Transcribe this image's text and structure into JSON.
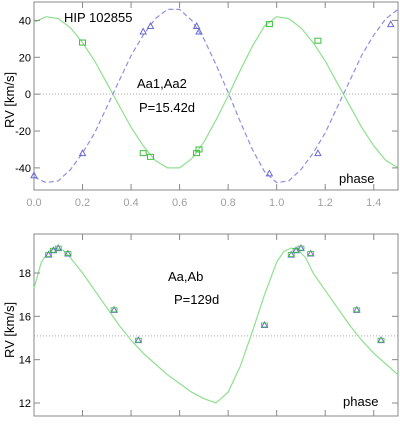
{
  "chart_data": [
    {
      "type": "line",
      "title": "HIP 102855",
      "ylabel": "RV [km/s]",
      "xlabel": "phase",
      "xlim": [
        0.0,
        1.5
      ],
      "ylim": [
        -52,
        50
      ],
      "xticks": [
        "0.0",
        "0.2",
        "0.4",
        "0.6",
        "0.8",
        "1.0",
        "1.2",
        "1.4"
      ],
      "yticks": [
        "40",
        "20",
        "0",
        "-20",
        "-40"
      ],
      "annotations": [
        "Aa1,Aa2",
        "P=15.42d"
      ],
      "gamma": 0,
      "colors": {
        "curve_a": "#8fe08f",
        "curve_b": "#8f8fe0",
        "points_a": "#3bbf3b",
        "points_b": "#6a6ad6"
      },
      "series": [
        {
          "curve_x": [
            0.0,
            0.05,
            0.1,
            0.15,
            0.2,
            0.25,
            0.3,
            0.35,
            0.4,
            0.45,
            0.5,
            0.55,
            0.6,
            0.65,
            0.7,
            0.75,
            0.8,
            0.85,
            0.9,
            0.95,
            1.0,
            1.05,
            1.1,
            1.15,
            1.2,
            1.25,
            1.3,
            1.35,
            1.4,
            1.45,
            1.5
          ],
          "curve_y": [
            39,
            42,
            41,
            36,
            28,
            18,
            6,
            -6,
            -18,
            -28,
            -36,
            -40,
            -40,
            -35,
            -26,
            -14,
            -1,
            13,
            26,
            37,
            42,
            41,
            36,
            28,
            18,
            6,
            -6,
            -18,
            -28,
            -36,
            -40
          ],
          "points": {
            "x": [
              0.2,
              0.45,
              0.48,
              0.67,
              0.68,
              0.97,
              1.17
            ],
            "y": [
              28,
              -32,
              -34,
              -32,
              -30,
              38,
              29
            ]
          }
        },
        {
          "curve_x": [
            0.0,
            0.05,
            0.1,
            0.15,
            0.2,
            0.25,
            0.3,
            0.35,
            0.4,
            0.45,
            0.5,
            0.55,
            0.6,
            0.65,
            0.7,
            0.75,
            0.8,
            0.85,
            0.9,
            0.95,
            1.0,
            1.05,
            1.1,
            1.15,
            1.2,
            1.25,
            1.3,
            1.35,
            1.4,
            1.45,
            1.5
          ],
          "curve_y": [
            -45,
            -48,
            -47,
            -41,
            -32,
            -21,
            -7,
            7,
            21,
            32,
            41,
            46,
            46,
            40,
            30,
            16,
            1,
            -15,
            -30,
            -42,
            -48,
            -47,
            -41,
            -32,
            -21,
            -7,
            7,
            21,
            32,
            41,
            46
          ],
          "points": {
            "x": [
              0.0,
              0.2,
              0.45,
              0.48,
              0.67,
              0.68,
              0.97,
              1.17,
              1.47
            ],
            "y": [
              -44,
              -32,
              34,
              37,
              37,
              34,
              -43,
              -32,
              38
            ]
          }
        }
      ]
    },
    {
      "type": "line",
      "title": "",
      "ylabel": "RV [km/s]",
      "xlabel": "phase",
      "xlim": [
        0.0,
        1.5
      ],
      "ylim": [
        11.4,
        19.8
      ],
      "yticks": [
        "18",
        "16",
        "14",
        "12"
      ],
      "annotations": [
        "Aa,Ab",
        "P=129d"
      ],
      "gamma": 15.1,
      "colors": {
        "curve": "#8fe08f",
        "points_a": "#3bbf3b",
        "points_b": "#6a6ad6"
      },
      "series": [
        {
          "curve_x": [
            0.0,
            0.03,
            0.06,
            0.09,
            0.12,
            0.15,
            0.2,
            0.25,
            0.3,
            0.35,
            0.4,
            0.45,
            0.5,
            0.55,
            0.6,
            0.65,
            0.7,
            0.75,
            0.8,
            0.85,
            0.9,
            0.95,
            1.0,
            1.03,
            1.06,
            1.09,
            1.12,
            1.15,
            1.2,
            1.25,
            1.3,
            1.35,
            1.4,
            1.45,
            1.5
          ],
          "curve_y": [
            17.3,
            18.5,
            19.0,
            19.15,
            19.05,
            18.7,
            18.0,
            17.2,
            16.4,
            15.6,
            14.9,
            14.3,
            13.8,
            13.3,
            12.9,
            12.5,
            12.2,
            12.0,
            12.5,
            13.7,
            15.3,
            17.0,
            18.5,
            19.0,
            19.15,
            19.05,
            18.7,
            18.0,
            17.2,
            16.4,
            15.6,
            14.9,
            14.3,
            13.8,
            13.3
          ],
          "points": {
            "x": [
              0.06,
              0.08,
              0.1,
              0.14,
              0.33,
              0.43,
              0.95,
              1.06,
              1.08,
              1.1,
              1.14,
              1.33,
              1.43
            ],
            "y": [
              18.85,
              19.05,
              19.15,
              18.9,
              16.3,
              14.9,
              15.6,
              18.85,
              19.05,
              19.15,
              18.9,
              16.3,
              14.9
            ]
          }
        }
      ]
    }
  ]
}
